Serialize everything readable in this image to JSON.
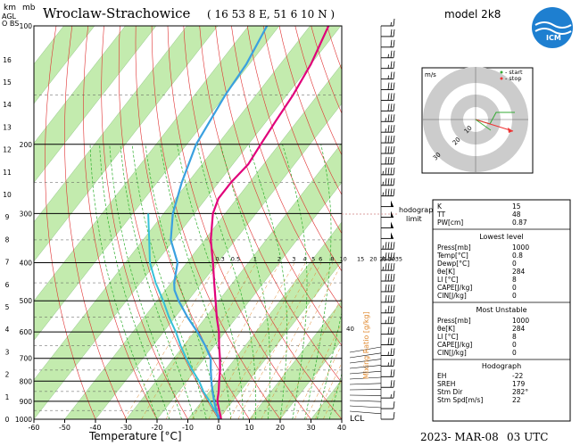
{
  "header": {
    "station": "Wroclaw-Strachowice",
    "coords": "( 16 53 8 E, 51 6 10 N )",
    "model": "model 2k8",
    "axis_km": "km",
    "axis_agl1": "AGL",
    "axis_agl2": "O BS",
    "axis_mb": "mb",
    "footer_date": "2023- MAR-08",
    "footer_time": "03 UTC",
    "lcl": "LCL",
    "hodograph_label1": "hodograph",
    "hodograph_label2": "limit",
    "mixing_ratio_label": "Mixing Ratio [g/kg]",
    "mixing_ratio_value": "40"
  },
  "colors": {
    "temp": "#e0007a",
    "dew": "#3aa0e0",
    "parcel": "#36c0d8",
    "band": "#b8e8a0",
    "dry": "#e03030",
    "moist": "#2cae2c",
    "mix": "#e08a30"
  },
  "chart_data": {
    "type": "skew-t",
    "xlabel": "Temperature [°C]",
    "xlim": [
      -60,
      40
    ],
    "x_ticks": [
      "-60",
      "-50",
      "-40",
      "-30",
      "-20",
      "-10",
      "0",
      "10",
      "20",
      "30",
      "40"
    ],
    "p_ticks": [
      "100",
      "200",
      "300",
      "400",
      "500",
      "600",
      "700",
      "800",
      "900",
      "1000"
    ],
    "km_ticks": [
      "0",
      "1",
      "2",
      "3",
      "4",
      "5",
      "6",
      "7",
      "8",
      "9",
      "10",
      "11",
      "12",
      "13",
      "14",
      "15",
      "16"
    ],
    "mixing_ratio_ticks": [
      "0.3",
      "0.5",
      "1",
      "2",
      "3",
      "4",
      "5",
      "6",
      "8",
      "10",
      "15",
      "20",
      "25",
      "30",
      "35"
    ],
    "temperature": [
      {
        "p": 1000,
        "t": 0.8
      },
      {
        "p": 950,
        "t": -2
      },
      {
        "p": 900,
        "t": -5
      },
      {
        "p": 850,
        "t": -7
      },
      {
        "p": 800,
        "t": -9.5
      },
      {
        "p": 750,
        "t": -12
      },
      {
        "p": 700,
        "t": -15
      },
      {
        "p": 650,
        "t": -18.5
      },
      {
        "p": 600,
        "t": -22
      },
      {
        "p": 550,
        "t": -26.5
      },
      {
        "p": 500,
        "t": -31
      },
      {
        "p": 450,
        "t": -36
      },
      {
        "p": 400,
        "t": -41.5
      },
      {
        "p": 350,
        "t": -48
      },
      {
        "p": 300,
        "t": -54
      },
      {
        "p": 275,
        "t": -56
      },
      {
        "p": 250,
        "t": -56
      },
      {
        "p": 225,
        "t": -55
      },
      {
        "p": 200,
        "t": -56
      },
      {
        "p": 175,
        "t": -57
      },
      {
        "p": 150,
        "t": -58
      },
      {
        "p": 125,
        "t": -60
      },
      {
        "p": 100,
        "t": -64
      }
    ],
    "dewpoint": [
      {
        "p": 1000,
        "t": 0
      },
      {
        "p": 950,
        "t": -3
      },
      {
        "p": 900,
        "t": -6
      },
      {
        "p": 850,
        "t": -9
      },
      {
        "p": 800,
        "t": -12
      },
      {
        "p": 750,
        "t": -15
      },
      {
        "p": 700,
        "t": -18
      },
      {
        "p": 650,
        "t": -23
      },
      {
        "p": 600,
        "t": -29
      },
      {
        "p": 550,
        "t": -36
      },
      {
        "p": 500,
        "t": -43
      },
      {
        "p": 470,
        "t": -47
      },
      {
        "p": 450,
        "t": -49
      },
      {
        "p": 400,
        "t": -53
      },
      {
        "p": 350,
        "t": -61
      },
      {
        "p": 300,
        "t": -67
      },
      {
        "p": 250,
        "t": -72
      },
      {
        "p": 200,
        "t": -77
      },
      {
        "p": 150,
        "t": -80
      },
      {
        "p": 125,
        "t": -81
      },
      {
        "p": 100,
        "t": -84
      }
    ],
    "parcel": [
      {
        "p": 1000,
        "t": 0.8
      },
      {
        "p": 950,
        "t": -3.5
      },
      {
        "p": 900,
        "t": -7.5
      },
      {
        "p": 850,
        "t": -12
      },
      {
        "p": 800,
        "t": -16
      },
      {
        "p": 750,
        "t": -21
      },
      {
        "p": 700,
        "t": -26
      },
      {
        "p": 650,
        "t": -31
      },
      {
        "p": 600,
        "t": -36
      },
      {
        "p": 550,
        "t": -42
      },
      {
        "p": 500,
        "t": -48
      },
      {
        "p": 450,
        "t": -55
      },
      {
        "p": 400,
        "t": -62
      },
      {
        "p": 350,
        "t": -68
      },
      {
        "p": 300,
        "t": -75
      }
    ],
    "wind_speed_kt": [
      10,
      10,
      15,
      20,
      20,
      25,
      25,
      30,
      30,
      35,
      35,
      40,
      40,
      40,
      45,
      45,
      45,
      50,
      50,
      50,
      50,
      45,
      45,
      45,
      40,
      40,
      40,
      35,
      35,
      30,
      30,
      30,
      25,
      25,
      25,
      20,
      20,
      15
    ],
    "hodograph": {
      "title": "m/s",
      "legend_start": "- start",
      "legend_stop": "- stop",
      "ring_labels": [
        "10",
        "20",
        "30"
      ]
    }
  },
  "indices": {
    "top": [
      {
        "label": "K",
        "value": "15"
      },
      {
        "label": "TT",
        "value": "48"
      },
      {
        "label": "PW[cm]",
        "value": "0.87"
      }
    ],
    "lowest_title": "Lowest level",
    "lowest": [
      {
        "label": "Press[mb]",
        "value": "1000"
      },
      {
        "label": "Temp[°C]",
        "value": "0.8"
      },
      {
        "label": "Dewp[°C]",
        "value": "0"
      },
      {
        "label": "θe[K]",
        "value": "284"
      },
      {
        "label": "LI [°C]",
        "value": "8"
      },
      {
        "label": "CAPE[J/kg]",
        "value": "0"
      },
      {
        "label": "CIN[J/kg]",
        "value": "0"
      }
    ],
    "unstable_title": "Most Unstable",
    "unstable": [
      {
        "label": "Press[mb]",
        "value": "1000"
      },
      {
        "label": "θe[K]",
        "value": "284"
      },
      {
        "label": "LI [°C]",
        "value": "8"
      },
      {
        "label": "CAPE[J/kg]",
        "value": "0"
      },
      {
        "label": "CIN[J/kg]",
        "value": "0"
      }
    ],
    "hodo_title": "Hodograph",
    "hodo": [
      {
        "label": "EH",
        "value": "-22"
      },
      {
        "label": "SREH",
        "value": "179"
      },
      {
        "label": "Stm Dir",
        "value": "282°"
      },
      {
        "label": "Stm Spd[m/s]",
        "value": "22"
      }
    ]
  }
}
